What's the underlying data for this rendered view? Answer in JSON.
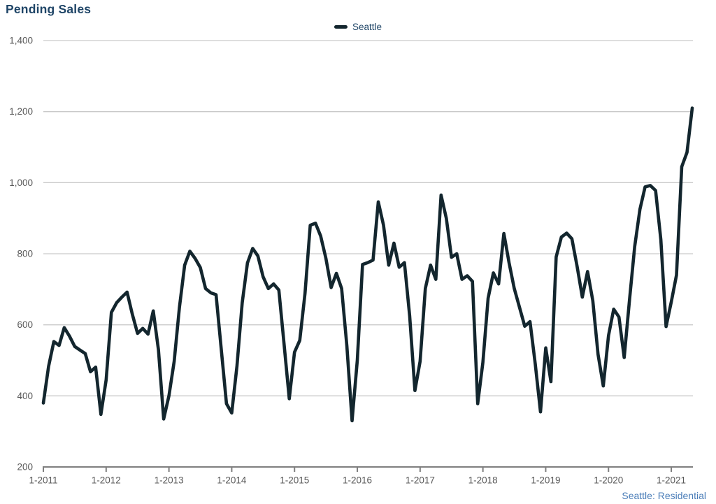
{
  "title": "Pending Sales",
  "legend": {
    "label": "Seattle"
  },
  "footer": "Seattle: Residential",
  "colors": {
    "title_text": "#1f4567",
    "legend_text": "#1f4567",
    "footer_text": "#4a7db8",
    "line": "#13262e",
    "grid": "#c9c9c9",
    "axis": "#7f7f7f",
    "tick_text": "#595959",
    "background": "#ffffff"
  },
  "chart_data": {
    "type": "line",
    "title": "Pending Sales",
    "xlabel": "",
    "ylabel": "",
    "ylim": [
      200,
      1400
    ],
    "grid": "horizontal",
    "legend_position": "top-center",
    "x_unit": "month",
    "x_range": "1-2011 to 5-2021",
    "x_tick_labels": [
      "1-2011",
      "1-2012",
      "1-2013",
      "1-2014",
      "1-2015",
      "1-2016",
      "1-2017",
      "1-2018",
      "1-2019",
      "1-2020",
      "1-2021"
    ],
    "x_tick_month_interval": 12,
    "y_ticks": [
      200,
      400,
      600,
      800,
      1000,
      1200,
      1400
    ],
    "y_tick_labels": [
      "200",
      "400",
      "600",
      "800",
      "1,000",
      "1,200",
      "1,400"
    ],
    "series": [
      {
        "name": "Seattle",
        "start_month": "2011-01",
        "values": [
          380,
          483,
          553,
          542,
          592,
          568,
          539,
          529,
          519,
          468,
          481,
          348,
          445,
          635,
          662,
          678,
          692,
          630,
          576,
          590,
          574,
          639,
          530,
          335,
          400,
          497,
          649,
          768,
          807,
          787,
          761,
          702,
          690,
          685,
          530,
          378,
          352,
          484,
          662,
          774,
          815,
          794,
          735,
          702,
          715,
          698,
          545,
          392,
          523,
          556,
          688,
          880,
          886,
          850,
          787,
          705,
          745,
          702,
          540,
          330,
          500,
          770,
          775,
          782,
          946,
          880,
          768,
          830,
          762,
          775,
          625,
          415,
          497,
          702,
          768,
          728,
          965,
          900,
          790,
          800,
          728,
          738,
          722,
          378,
          494,
          675,
          746,
          715,
          857,
          774,
          702,
          649,
          596,
          609,
          490,
          355,
          535,
          440,
          791,
          847,
          858,
          842,
          764,
          678,
          750,
          668,
          517,
          428,
          570,
          644,
          622,
          508,
          668,
          820,
          925,
          988,
          992,
          978,
          840,
          595,
          665,
          740,
          1045,
          1085,
          1210
        ]
      }
    ]
  }
}
